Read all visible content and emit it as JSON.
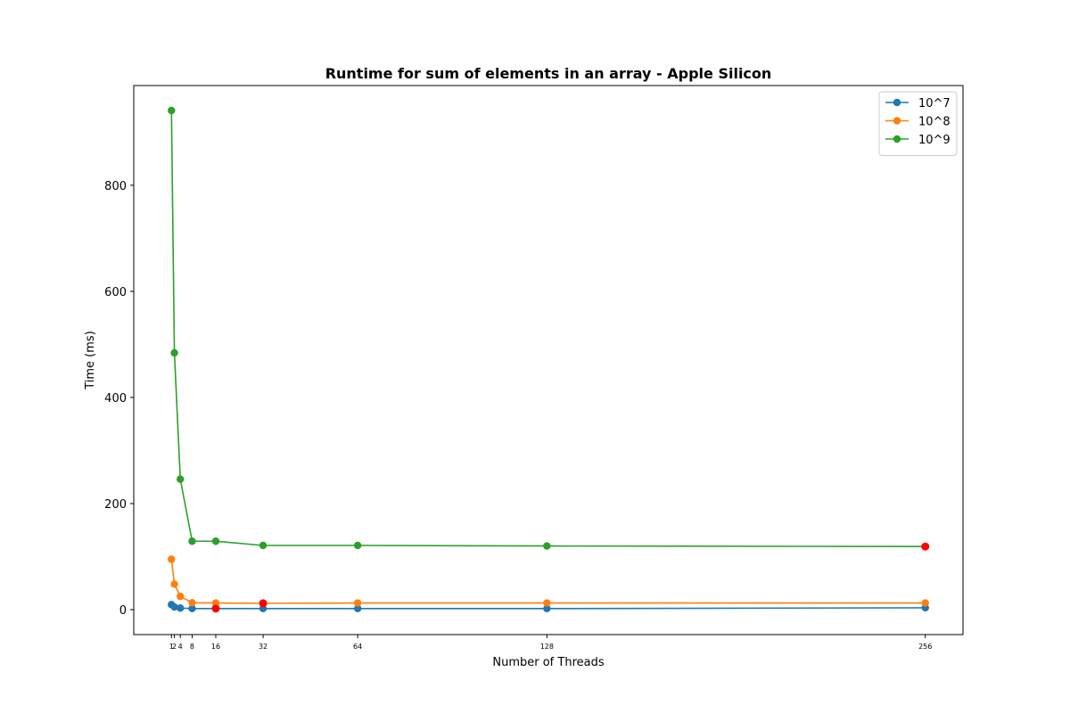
{
  "chart_data": {
    "type": "line",
    "title": "Runtime for sum of elements in an array - Apple Silicon",
    "xlabel": "Number of Threads",
    "ylabel": "Time (ms)",
    "xlim": [
      -11.75,
      268.75
    ],
    "ylim": [
      -47,
      988
    ],
    "x": [
      1,
      2,
      4,
      8,
      16,
      32,
      64,
      128,
      256
    ],
    "xticks": [
      1,
      2,
      4,
      8,
      16,
      32,
      64,
      128,
      256
    ],
    "xtick_labels": [
      "1",
      "2",
      "4",
      "8",
      "16",
      "32",
      "64",
      "128",
      "256"
    ],
    "yticks": [
      0,
      200,
      400,
      600,
      800
    ],
    "ytick_labels": [
      "0",
      "200",
      "400",
      "600",
      "800"
    ],
    "legend_position": "top-right",
    "grid": false,
    "series": [
      {
        "name": "10^7",
        "color": "#1f77b4",
        "values": [
          9.5,
          5,
          3,
          2,
          2,
          2,
          2,
          2,
          3.5
        ],
        "min_index": 4
      },
      {
        "name": "10^8",
        "color": "#ff7f0e",
        "values": [
          95,
          48,
          25,
          13,
          12.5,
          12,
          12.5,
          12.5,
          12.5
        ],
        "min_index": 5
      },
      {
        "name": "10^9",
        "color": "#2ca02c",
        "values": [
          941,
          484,
          246,
          129,
          129,
          121,
          121,
          120,
          119
        ],
        "min_index": 8
      }
    ],
    "min_marker_color": "#ff0000"
  }
}
